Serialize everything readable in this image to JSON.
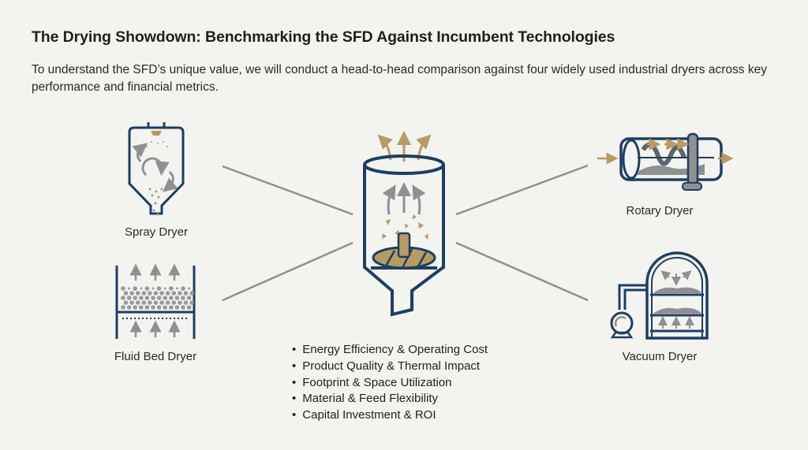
{
  "title": "The Drying Showdown: Benchmarking the SFD Against Incumbent Technologies",
  "subtitle": "To understand the SFD’s unique value, we will conduct a head-to-head comparison against four widely used industrial dryers across key performance and financial metrics.",
  "dryers": [
    {
      "label": "Spray Dryer",
      "icon": "spray-dryer-icon"
    },
    {
      "label": "Fluid Bed Dryer",
      "icon": "fluid-bed-dryer-icon"
    },
    {
      "label": "Rotary Dryer",
      "icon": "rotary-dryer-icon"
    },
    {
      "label": "Vacuum Dryer",
      "icon": "vacuum-dryer-icon"
    }
  ],
  "center": {
    "icon": "sfd-dryer-icon"
  },
  "metrics": [
    "Energy Efficiency & Operating Cost",
    "Product Quality & Thermal Impact",
    "Footprint & Space Utilization",
    "Material & Feed Flexibility",
    "Capital Investment & ROI"
  ],
  "colors": {
    "navy": "#1d3f63",
    "gold": "#b89a63",
    "gray": "#8f9093",
    "background": "#f3f3ef"
  }
}
